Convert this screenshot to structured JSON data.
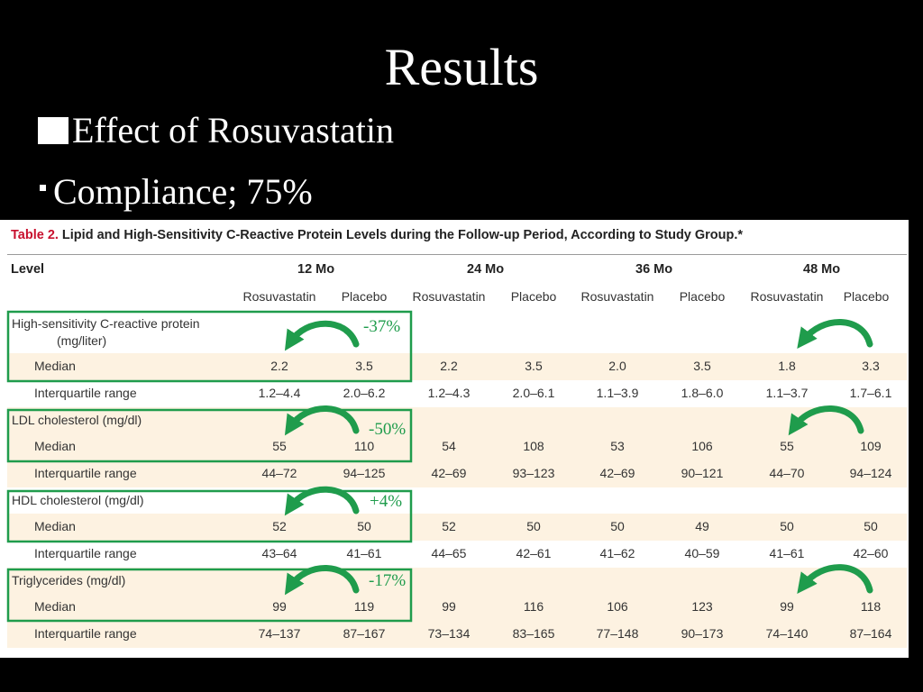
{
  "slide": {
    "title": "Results",
    "bullets": [
      "Effect of Rosuvastatin",
      "Compliance; 75%"
    ]
  },
  "table": {
    "number": "Table 2.",
    "caption": "Lipid and High-Sensitivity C-Reactive Protein Levels during the Follow-up Period, According to Study Group.*",
    "level_header": "Level",
    "periods": [
      "12 Mo",
      "24 Mo",
      "36 Mo",
      "48 Mo"
    ],
    "groups": [
      "Rosuvastatin",
      "Placebo",
      "Rosuvastatin",
      "Placebo",
      "Rosuvastatin",
      "Placebo",
      "Rosuvastatin",
      "Placebo"
    ],
    "sections": [
      {
        "title": "High-sensitivity C-reactive protein",
        "title2": "(mg/liter)",
        "rows": [
          {
            "label": "Median",
            "values": [
              "2.2",
              "3.5",
              "2.2",
              "3.5",
              "2.0",
              "3.5",
              "1.8",
              "3.3"
            ]
          },
          {
            "label": "Interquartile range",
            "values": [
              "1.2–4.4",
              "2.0–6.2",
              "1.2–4.3",
              "2.0–6.1",
              "1.1–3.9",
              "1.8–6.0",
              "1.1–3.7",
              "1.7–6.1"
            ]
          }
        ]
      },
      {
        "title": "LDL cholesterol (mg/dl)",
        "rows": [
          {
            "label": "Median",
            "values": [
              "55",
              "110",
              "54",
              "108",
              "53",
              "106",
              "55",
              "109"
            ]
          },
          {
            "label": "Interquartile range",
            "values": [
              "44–72",
              "94–125",
              "42–69",
              "93–123",
              "42–69",
              "90–121",
              "44–70",
              "94–124"
            ]
          }
        ]
      },
      {
        "title": "HDL cholesterol (mg/dl)",
        "rows": [
          {
            "label": "Median",
            "values": [
              "52",
              "50",
              "52",
              "50",
              "50",
              "49",
              "50",
              "50"
            ]
          },
          {
            "label": "Interquartile range",
            "values": [
              "43–64",
              "41–61",
              "44–65",
              "42–61",
              "41–62",
              "40–59",
              "41–61",
              "42–60"
            ]
          }
        ]
      },
      {
        "title": "Triglycerides (mg/dl)",
        "rows": [
          {
            "label": "Median",
            "values": [
              "99",
              "119",
              "99",
              "116",
              "106",
              "123",
              "99",
              "118"
            ]
          },
          {
            "label": "Interquartile range",
            "values": [
              "74–137",
              "87–167",
              "73–134",
              "83–165",
              "77–148",
              "90–173",
              "74–140",
              "87–164"
            ]
          }
        ]
      }
    ]
  },
  "annotations": {
    "changes": [
      "-37%",
      "-50%",
      "+4%",
      "-17%"
    ],
    "accent_color": "#1f9c4c"
  }
}
